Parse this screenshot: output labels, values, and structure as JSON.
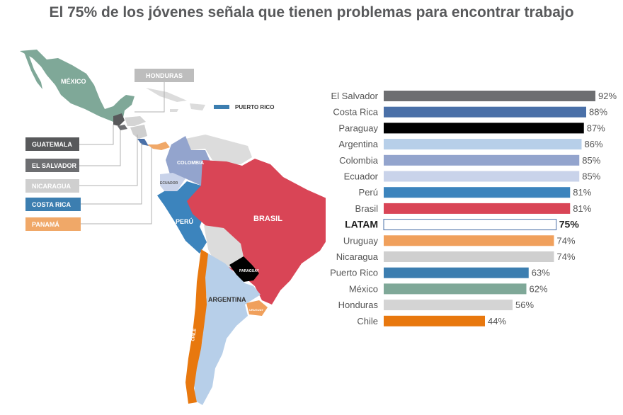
{
  "title": "El 75% de los jóvenes señala que tienen problemas para encontrar trabajo",
  "map_labels": {
    "mexico": "MÉXICO",
    "honduras": "HONDURAS",
    "puerto_rico": "PUERTO RICO",
    "guatemala": "GUATEMALA",
    "el_salvador": "EL SALVADOR",
    "nicaragua": "NICARAGUA",
    "costa_rica": "COSTA RICA",
    "panama": "PANAMÁ",
    "colombia": "COLOMBIA",
    "ecuador": "ECUADOR",
    "peru": "PERÚ",
    "brasil": "BRASIL",
    "paraguay": "PARAGUAY",
    "argentina": "ARGENTINA",
    "uruguay": "URUGUAY",
    "chile": "CHILE"
  },
  "colors": {
    "el_salvador": "#6d6e71",
    "costa_rica": "#4a70a8",
    "paraguay": "#000000",
    "argentina": "#b7cfe9",
    "colombia": "#93a4cd",
    "ecuador": "#c9d3ea",
    "peru": "#3c84bd",
    "brasil": "#d94556",
    "uruguay": "#f0a05c",
    "nicaragua": "#cfcfcf",
    "puerto_rico": "#3c7eb0",
    "mexico": "#7fa898",
    "honduras": "#d4d4d4",
    "chile": "#e8780e",
    "guatemala": "#58595b",
    "panama": "#f0a868",
    "other": "#dcdcdc",
    "latam": "#ffffff"
  },
  "chart_data": {
    "type": "bar",
    "orientation": "horizontal",
    "title": "El 75% de los jóvenes señala que tienen problemas para encontrar trabajo",
    "categories": [
      "El Salvador",
      "Costa Rica",
      "Paraguay",
      "Argentina",
      "Colombia",
      "Ecuador",
      "Perú",
      "Brasil",
      "LATAM",
      "Uruguay",
      "Nicaragua",
      "Puerto Rico",
      "México",
      "Honduras",
      "Chile"
    ],
    "values": [
      92,
      88,
      87,
      86,
      85,
      85,
      81,
      81,
      75,
      74,
      74,
      63,
      62,
      56,
      44
    ],
    "value_labels": [
      "92%",
      "88%",
      "87%",
      "86%",
      "85%",
      "85%",
      "81%",
      "81%",
      "75%",
      "74%",
      "74%",
      "63%",
      "62%",
      "56%",
      "44%"
    ],
    "highlight": "LATAM",
    "xlim": [
      0,
      100
    ],
    "xlabel": "",
    "ylabel": ""
  }
}
